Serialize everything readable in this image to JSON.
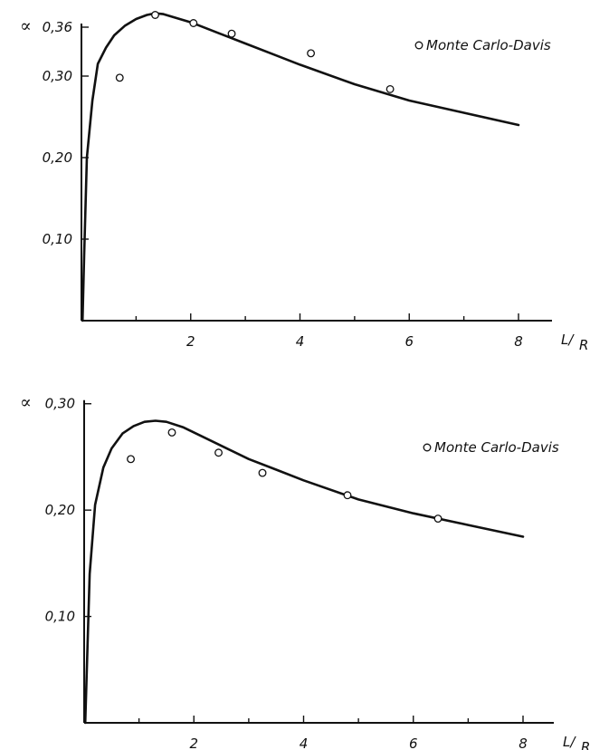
{
  "chart_data": [
    {
      "type": "line",
      "ylabel": "∝",
      "xlabel": {
        "main": "L/",
        "sub": "R"
      },
      "xlim": [
        0,
        8.6
      ],
      "ylim": [
        0,
        0.38
      ],
      "xticks": [
        2,
        4,
        6,
        8
      ],
      "xminor": [
        1,
        3,
        5,
        7
      ],
      "yticks": [
        "0,10",
        "0,20",
        "0,30",
        "0,36"
      ],
      "ytick_values": [
        0.1,
        0.2,
        0.3,
        0.36
      ],
      "legend": {
        "text": "Monte Carlo-Davis",
        "position": "top-right"
      },
      "series": [
        {
          "x": [
            0.02,
            0.05,
            0.1,
            0.2,
            0.3,
            0.45,
            0.6,
            0.8,
            1.0,
            1.2,
            1.35,
            1.5,
            2.0,
            2.5,
            3.0,
            3.5,
            4.0,
            5.0,
            6.0,
            7.0,
            8.0
          ],
          "y": [
            0.0,
            0.08,
            0.2,
            0.27,
            0.315,
            0.335,
            0.35,
            0.362,
            0.37,
            0.375,
            0.377,
            0.376,
            0.366,
            0.353,
            0.34,
            0.327,
            0.314,
            0.29,
            0.27,
            0.255,
            0.24
          ]
        },
        {
          "name": "Monte Carlo-Davis",
          "marker": "open-circle",
          "x": [
            0.7,
            1.35,
            2.05,
            2.75,
            4.2,
            5.65
          ],
          "y": [
            0.298,
            0.375,
            0.365,
            0.352,
            0.328,
            0.284
          ]
        }
      ]
    },
    {
      "type": "line",
      "ylabel": "∝",
      "xlabel": {
        "main": "L/",
        "sub": "R"
      },
      "xlim": [
        0,
        8.6
      ],
      "ylim": [
        0,
        0.31
      ],
      "xticks": [
        2,
        4,
        6,
        8
      ],
      "xminor": [
        1,
        3,
        5,
        7
      ],
      "yticks": [
        "0,10",
        "0,20",
        "0,30"
      ],
      "ytick_values": [
        0.1,
        0.2,
        0.3
      ],
      "legend": {
        "text": "Monte Carlo-Davis",
        "position": "top-right"
      },
      "series": [
        {
          "x": [
            0.02,
            0.1,
            0.2,
            0.35,
            0.5,
            0.7,
            0.9,
            1.1,
            1.3,
            1.5,
            1.8,
            2.2,
            2.6,
            3.0,
            3.5,
            4.0,
            5.0,
            6.0,
            7.0,
            8.0
          ],
          "y": [
            0.0,
            0.14,
            0.205,
            0.24,
            0.258,
            0.272,
            0.279,
            0.283,
            0.284,
            0.283,
            0.278,
            0.268,
            0.258,
            0.248,
            0.238,
            0.228,
            0.21,
            0.197,
            0.186,
            0.175
          ]
        },
        {
          "name": "Monte Carlo-Davis",
          "marker": "open-circle",
          "x": [
            0.85,
            1.6,
            2.45,
            3.25,
            4.8,
            6.45
          ],
          "y": [
            0.248,
            0.273,
            0.254,
            0.235,
            0.214,
            0.192
          ]
        }
      ]
    }
  ]
}
